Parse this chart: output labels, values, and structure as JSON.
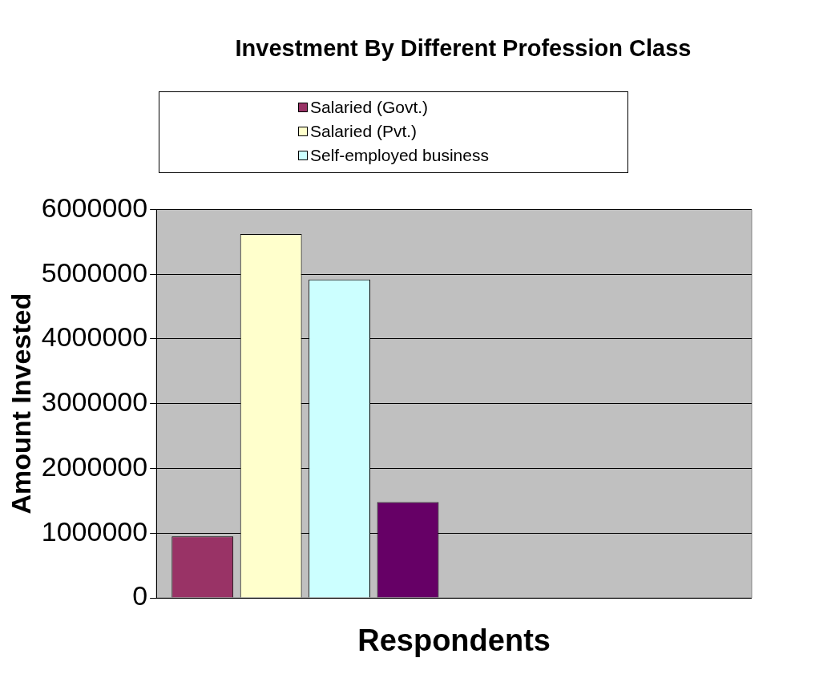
{
  "chart_data": {
    "type": "bar",
    "title": "Investment By Different Profession Class",
    "xlabel": "Respondents",
    "ylabel": "Amount Invested",
    "categories": [
      null,
      null
    ],
    "series": [
      {
        "name": "Salaried (Govt.)",
        "color": "#993366",
        "values": [
          950000,
          null
        ]
      },
      {
        "name": "Salaried (Pvt.)",
        "color": "#ffffcc",
        "values": [
          5620000,
          null
        ]
      },
      {
        "name": "Self-employed business",
        "color": "#ccffff",
        "values": [
          4920000,
          null
        ]
      },
      {
        "color": "#660066",
        "values": [
          1480000,
          null
        ]
      }
    ],
    "ylim": [
      0,
      6000000
    ],
    "yticks": [
      0,
      1000000,
      2000000,
      3000000,
      4000000,
      5000000,
      6000000
    ],
    "grid": "y",
    "legend": "top"
  }
}
